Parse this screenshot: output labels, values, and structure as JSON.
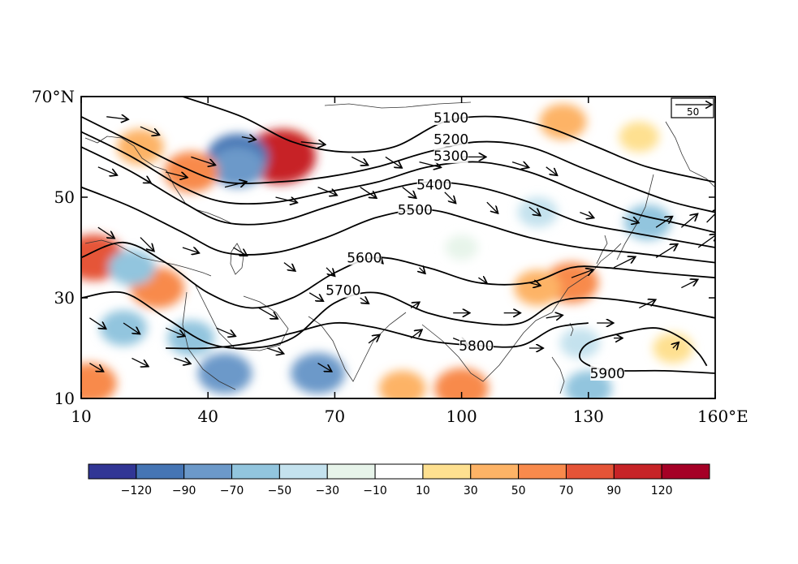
{
  "map": {
    "extent": {
      "lon": [
        10,
        160
      ],
      "lat": [
        10,
        70
      ]
    },
    "x_ticks": [
      {
        "lon": 10,
        "label": "10"
      },
      {
        "lon": 40,
        "label": "40"
      },
      {
        "lon": 70,
        "label": "70"
      },
      {
        "lon": 100,
        "label": "100"
      },
      {
        "lon": 130,
        "label": "130"
      },
      {
        "lon": 160,
        "label": "160°E"
      }
    ],
    "y_ticks": [
      {
        "lat": 70,
        "label": "70°N"
      },
      {
        "lat": 50,
        "label": "50"
      },
      {
        "lat": 30,
        "label": "30"
      },
      {
        "lat": 10,
        "label": "10"
      }
    ],
    "reference_vector": {
      "label": "50"
    },
    "contours": [
      {
        "value": 5100,
        "label": "5100",
        "label_lon": 97.5,
        "label_lat": 65.8,
        "points": [
          [
            34,
            70
          ],
          [
            48,
            66
          ],
          [
            60,
            61
          ],
          [
            72,
            59
          ],
          [
            84,
            60
          ],
          [
            96,
            65
          ],
          [
            108,
            66
          ],
          [
            120,
            64
          ],
          [
            132,
            60
          ],
          [
            144,
            56
          ],
          [
            160,
            53
          ]
        ]
      },
      {
        "value": 5200,
        "label": "5200",
        "label_lon": 97.5,
        "label_lat": 61.5,
        "points": [
          [
            10,
            66
          ],
          [
            22,
            61
          ],
          [
            34,
            56
          ],
          [
            44,
            53
          ],
          [
            56,
            53
          ],
          [
            68,
            54
          ],
          [
            80,
            56
          ],
          [
            92,
            59
          ],
          [
            104,
            61
          ],
          [
            116,
            60
          ],
          [
            128,
            56
          ],
          [
            140,
            52
          ],
          [
            150,
            49
          ],
          [
            160,
            47
          ]
        ]
      },
      {
        "value": 5300,
        "label": "5300",
        "label_lon": 97.5,
        "label_lat": 58.2,
        "points": [
          [
            10,
            63
          ],
          [
            22,
            58
          ],
          [
            34,
            52
          ],
          [
            44,
            49
          ],
          [
            56,
            49
          ],
          [
            68,
            51
          ],
          [
            80,
            53
          ],
          [
            92,
            56
          ],
          [
            104,
            57
          ],
          [
            116,
            55
          ],
          [
            128,
            51
          ],
          [
            140,
            47
          ],
          [
            150,
            45
          ],
          [
            160,
            43
          ]
        ]
      },
      {
        "value": 5400,
        "label": "5400",
        "label_lon": 93.5,
        "label_lat": 52.5,
        "points": [
          [
            10,
            60
          ],
          [
            22,
            55
          ],
          [
            34,
            49
          ],
          [
            44,
            45
          ],
          [
            56,
            45
          ],
          [
            68,
            48
          ],
          [
            80,
            51
          ],
          [
            92,
            53
          ],
          [
            104,
            52
          ],
          [
            116,
            49
          ],
          [
            128,
            45
          ],
          [
            140,
            43
          ],
          [
            150,
            41.5
          ],
          [
            160,
            40
          ]
        ]
      },
      {
        "value": 5500,
        "label": "5500",
        "label_lon": 89,
        "label_lat": 47.5,
        "points": [
          [
            10,
            52
          ],
          [
            22,
            48
          ],
          [
            34,
            43
          ],
          [
            44,
            39
          ],
          [
            56,
            39
          ],
          [
            68,
            42
          ],
          [
            80,
            46
          ],
          [
            92,
            47.5
          ],
          [
            104,
            45
          ],
          [
            116,
            42
          ],
          [
            128,
            40
          ],
          [
            140,
            39
          ],
          [
            150,
            38
          ],
          [
            160,
            37
          ]
        ]
      },
      {
        "value": 5600,
        "label": "5600",
        "label_lon": 77,
        "label_lat": 38,
        "points": [
          [
            10,
            38
          ],
          [
            20,
            41
          ],
          [
            30,
            37
          ],
          [
            40,
            31
          ],
          [
            50,
            28
          ],
          [
            60,
            30
          ],
          [
            70,
            35
          ],
          [
            80,
            38
          ],
          [
            92,
            36
          ],
          [
            104,
            33
          ],
          [
            116,
            33
          ],
          [
            126,
            36
          ],
          [
            134,
            36
          ],
          [
            146,
            35
          ],
          [
            160,
            34
          ]
        ]
      },
      {
        "value": 5700,
        "label": "5700",
        "label_lon": 72,
        "label_lat": 31.5,
        "points": [
          [
            10,
            30
          ],
          [
            20,
            31
          ],
          [
            30,
            26
          ],
          [
            40,
            21
          ],
          [
            50,
            20
          ],
          [
            60,
            22
          ],
          [
            70,
            29
          ],
          [
            80,
            31
          ],
          [
            92,
            27
          ],
          [
            104,
            25
          ],
          [
            114,
            25
          ],
          [
            122,
            29
          ],
          [
            130,
            30
          ],
          [
            142,
            29
          ],
          [
            160,
            26
          ]
        ]
      },
      {
        "value": 5800,
        "label": "5800",
        "label_lon": 103.5,
        "label_lat": 20.5,
        "points": [
          [
            30,
            20
          ],
          [
            40,
            20
          ],
          [
            50,
            21
          ],
          [
            60,
            23
          ],
          [
            70,
            25
          ],
          [
            80,
            24
          ],
          [
            92,
            21.5
          ],
          [
            104,
            20.5
          ],
          [
            114,
            20.5
          ],
          [
            122,
            24
          ],
          [
            130,
            25
          ]
        ]
      },
      {
        "value": 5900,
        "label": "5900",
        "label_lon": 134.5,
        "label_lat": 15,
        "points": [
          [
            160,
            15
          ],
          [
            148,
            15.5
          ],
          [
            138,
            15.5
          ],
          [
            132,
            16
          ],
          [
            128,
            18
          ],
          [
            130,
            21
          ],
          [
            138,
            23
          ],
          [
            146,
            24
          ],
          [
            152,
            22
          ],
          [
            156,
            19
          ],
          [
            158,
            16.5
          ]
        ]
      }
    ],
    "anomaly_blobs": [
      {
        "lon": 58,
        "lat": 59,
        "value": 90
      },
      {
        "lon": 57,
        "lat": 58,
        "value": 120
      },
      {
        "lon": 47,
        "lat": 58,
        "value": -90
      },
      {
        "lon": 47,
        "lat": 56,
        "value": -70
      },
      {
        "lon": 36,
        "lat": 55,
        "value": 70
      },
      {
        "lon": 24,
        "lat": 60,
        "value": 50
      },
      {
        "lon": 13,
        "lat": 38,
        "value": 90
      },
      {
        "lon": 28,
        "lat": 32,
        "value": 70
      },
      {
        "lon": 22,
        "lat": 36,
        "value": -50
      },
      {
        "lon": 20,
        "lat": 24,
        "value": -50
      },
      {
        "lon": 36,
        "lat": 22,
        "value": -50
      },
      {
        "lon": 44,
        "lat": 15,
        "value": -70
      },
      {
        "lon": 66,
        "lat": 15,
        "value": -70
      },
      {
        "lon": 100,
        "lat": 12,
        "value": 70
      },
      {
        "lon": 86,
        "lat": 12,
        "value": 50
      },
      {
        "lon": 126,
        "lat": 33,
        "value": 70
      },
      {
        "lon": 118,
        "lat": 32,
        "value": 50
      },
      {
        "lon": 144,
        "lat": 45,
        "value": -50
      },
      {
        "lon": 124,
        "lat": 65,
        "value": 50
      },
      {
        "lon": 142,
        "lat": 62,
        "value": 30
      },
      {
        "lon": 12,
        "lat": 13,
        "value": 70
      },
      {
        "lon": 130,
        "lat": 12,
        "value": -50
      },
      {
        "lon": 150,
        "lat": 20,
        "value": 30
      },
      {
        "lon": 128,
        "lat": 21,
        "value": -30
      },
      {
        "lon": 100,
        "lat": 40,
        "value": -10
      },
      {
        "lon": 118,
        "lat": 47,
        "value": -30
      }
    ],
    "wind_vectors": [
      [
        16,
        66,
        8,
        -1
      ],
      [
        24,
        64,
        7,
        -3
      ],
      [
        36,
        58,
        9,
        -3
      ],
      [
        48,
        62,
        5,
        -1
      ],
      [
        62,
        61,
        9,
        -1
      ],
      [
        74,
        58,
        6,
        -3
      ],
      [
        82,
        58,
        6,
        -4
      ],
      [
        90,
        57,
        8,
        -2
      ],
      [
        100,
        58,
        9,
        0
      ],
      [
        112,
        57,
        6,
        -2
      ],
      [
        120,
        56,
        4,
        -3
      ],
      [
        14,
        56,
        7,
        -3
      ],
      [
        22,
        55,
        7,
        -4
      ],
      [
        30,
        55,
        8,
        -2
      ],
      [
        44,
        52,
        8,
        2
      ],
      [
        56,
        50,
        8,
        -2
      ],
      [
        66,
        52,
        7,
        -3
      ],
      [
        76,
        52,
        6,
        -4
      ],
      [
        86,
        52,
        5,
        -4
      ],
      [
        96,
        51,
        4,
        -4
      ],
      [
        106,
        49,
        4,
        -4
      ],
      [
        116,
        48,
        4,
        -3
      ],
      [
        128,
        47,
        5,
        -2
      ],
      [
        138,
        46,
        6,
        -2
      ],
      [
        146,
        44,
        6,
        4
      ],
      [
        152,
        44,
        6,
        5
      ],
      [
        158,
        45,
        5,
        5
      ],
      [
        14,
        44,
        6,
        -4
      ],
      [
        24,
        42,
        5,
        -5
      ],
      [
        34,
        40,
        6,
        -2
      ],
      [
        46,
        40,
        5,
        -3
      ],
      [
        58,
        37,
        4,
        -3
      ],
      [
        68,
        36,
        3,
        -3
      ],
      [
        80,
        38,
        2,
        -2
      ],
      [
        90,
        36,
        2,
        -2
      ],
      [
        104,
        34,
        3,
        -2
      ],
      [
        116,
        33,
        4,
        -1
      ],
      [
        126,
        34,
        8,
        3
      ],
      [
        136,
        36,
        8,
        4
      ],
      [
        146,
        38,
        8,
        5
      ],
      [
        156,
        40,
        7,
        5
      ],
      [
        12,
        26,
        6,
        -4
      ],
      [
        20,
        25,
        6,
        -4
      ],
      [
        30,
        24,
        7,
        -3
      ],
      [
        42,
        24,
        7,
        -3
      ],
      [
        52,
        28,
        7,
        -4
      ],
      [
        64,
        31,
        5,
        -3
      ],
      [
        76,
        30,
        3,
        -2
      ],
      [
        88,
        28,
        3,
        2
      ],
      [
        98,
        27,
        6,
        0
      ],
      [
        110,
        27,
        6,
        0
      ],
      [
        120,
        26,
        6,
        1
      ],
      [
        132,
        25,
        6,
        0
      ],
      [
        142,
        28,
        6,
        3
      ],
      [
        152,
        32,
        6,
        3
      ],
      [
        12,
        17,
        5,
        -3
      ],
      [
        22,
        18,
        6,
        -3
      ],
      [
        32,
        18,
        6,
        -2
      ],
      [
        54,
        20,
        6,
        -2
      ],
      [
        66,
        17,
        5,
        -3
      ],
      [
        78,
        21,
        4,
        3
      ],
      [
        88,
        22,
        4,
        3
      ],
      [
        98,
        22,
        5,
        -2
      ],
      [
        116,
        20,
        5,
        0
      ],
      [
        136,
        22,
        3,
        0
      ],
      [
        150,
        20,
        2,
        2
      ]
    ]
  },
  "colorbar": {
    "colors": [
      "#313695",
      "#4575b4",
      "#6c99c9",
      "#92c5de",
      "#c4e2ee",
      "#e7f4ea",
      "#ffffff",
      "#fee090",
      "#fdb366",
      "#f88a4c",
      "#e55437",
      "#c72327",
      "#a50026"
    ],
    "labels": [
      "−120",
      "−90",
      "−70",
      "−50",
      "−30",
      "−10",
      "10",
      "30",
      "50",
      "70",
      "90",
      "120"
    ]
  }
}
